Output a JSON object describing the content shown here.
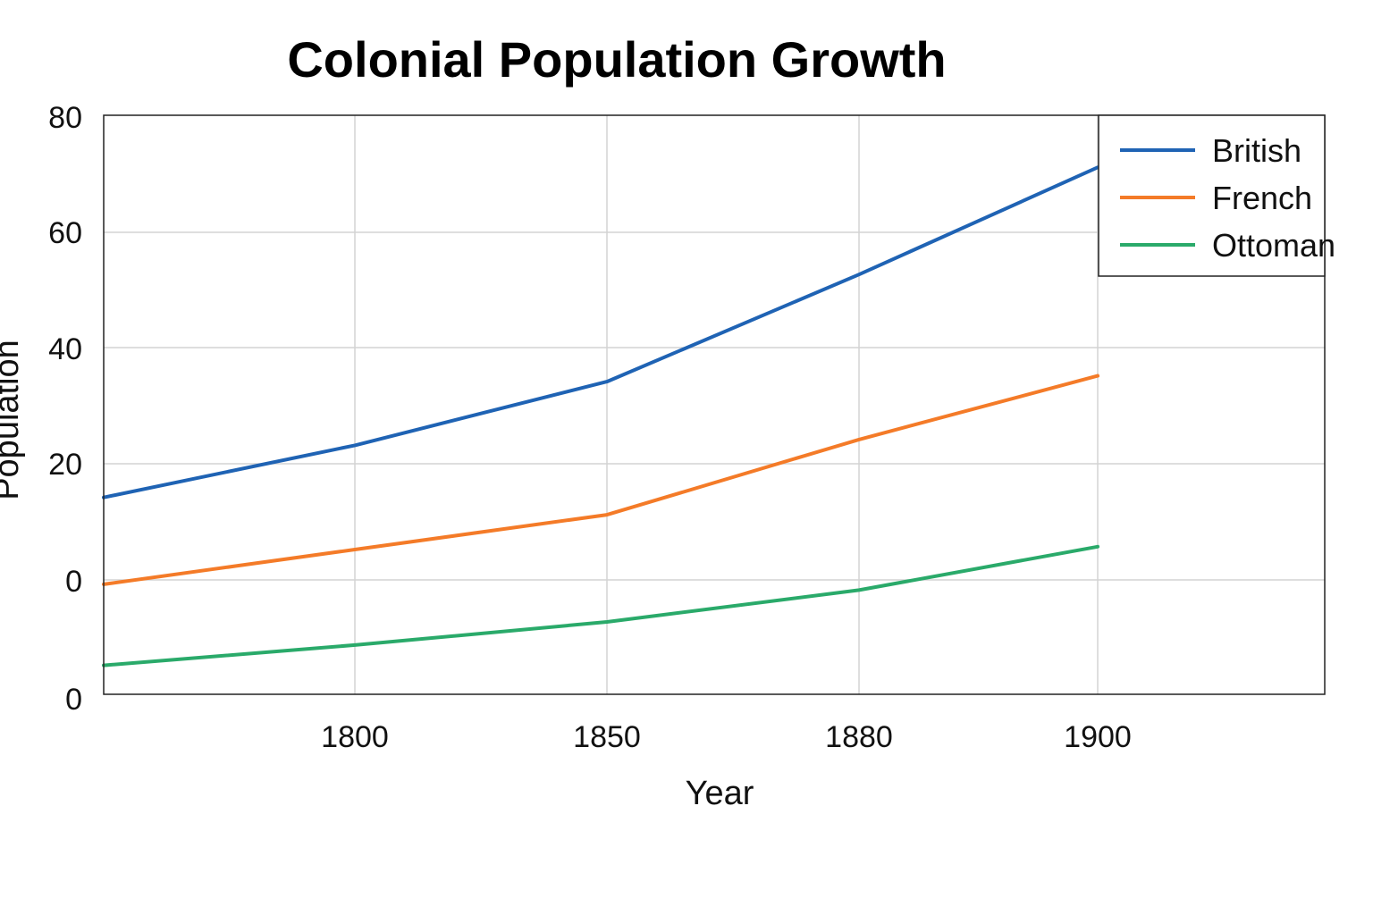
{
  "chart_data": {
    "type": "line",
    "title": "Colonial Population Growth",
    "xlabel": "Year",
    "ylabel": "Population",
    "x_tick_labels": [
      "1800",
      "1850",
      "1880",
      "1900"
    ],
    "y_tick_labels": [
      "0",
      "0",
      "20",
      "40",
      "60",
      "80"
    ],
    "grid": true,
    "legend_position": "top-right",
    "series": [
      {
        "name": "British",
        "color": "#1f63b4",
        "points": [
          {
            "x": "",
            "y": 14
          },
          {
            "x": "1800",
            "y": 23
          },
          {
            "x": "1850",
            "y": 34
          },
          {
            "x": "1880",
            "y": 52.5
          },
          {
            "x": "1900",
            "y": 71
          }
        ]
      },
      {
        "name": "French",
        "color": "#f47b28",
        "points": [
          {
            "x": "",
            "y": -1
          },
          {
            "x": "1800",
            "y": 5
          },
          {
            "x": "1850",
            "y": 11
          },
          {
            "x": "1880",
            "y": 24
          },
          {
            "x": "1900",
            "y": 35
          }
        ]
      },
      {
        "name": "Ottoman",
        "color": "#2aaa6a",
        "points": [
          {
            "x": "",
            "y": -15
          },
          {
            "x": "1800",
            "y": -11.5
          },
          {
            "x": "1850",
            "y": -7.5
          },
          {
            "x": "1880",
            "y": -2
          },
          {
            "x": "1900",
            "y": 5.5
          }
        ]
      }
    ]
  }
}
